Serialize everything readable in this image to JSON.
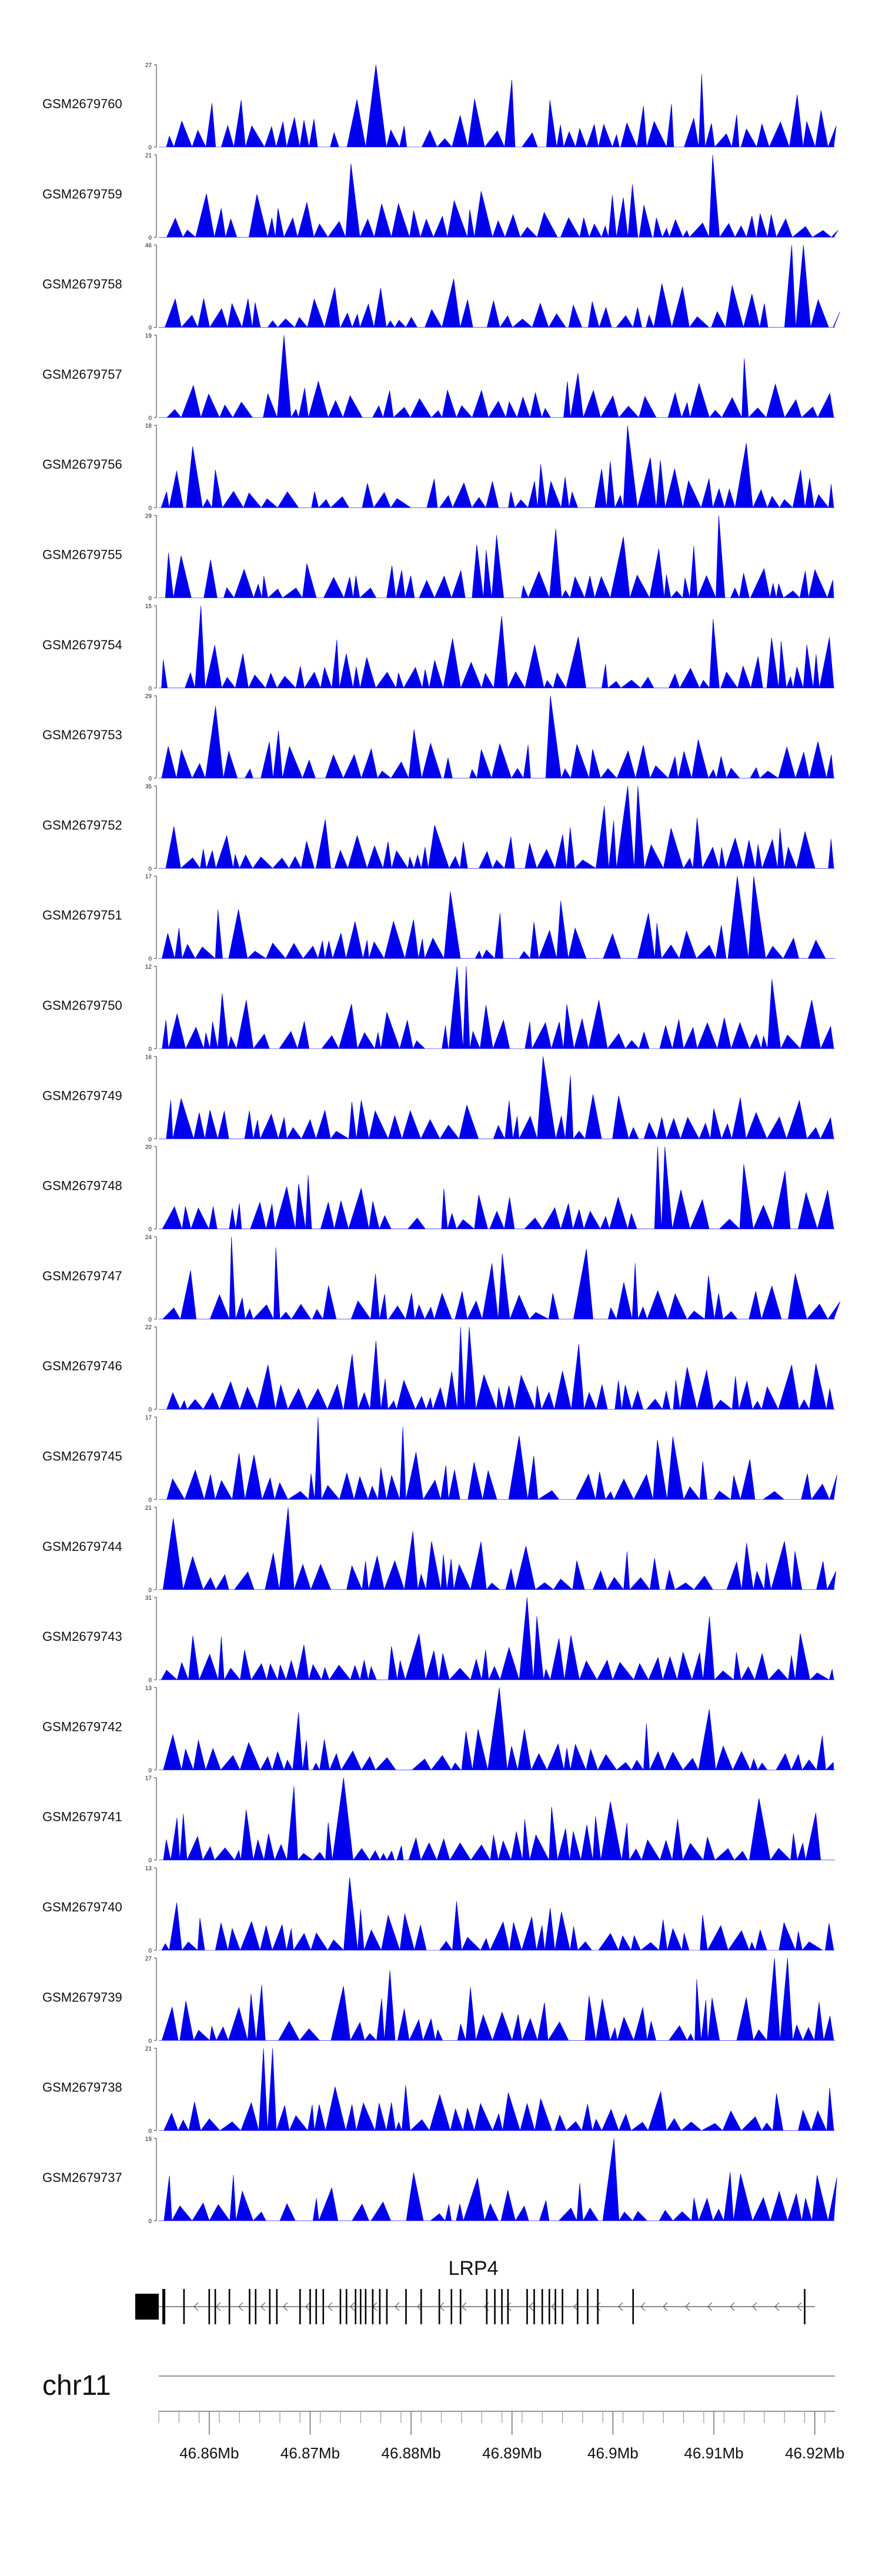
{
  "chart_data": {
    "type": "area",
    "title": "",
    "region": {
      "start": 46.855,
      "end": 46.922,
      "unit": "Mb"
    },
    "tracks": [
      {
        "name": "GSM2679760",
        "ymax": 27,
        "ymin": 0,
        "seed": 11
      },
      {
        "name": "GSM2679759",
        "ymax": 21,
        "ymin": 0,
        "seed": 23
      },
      {
        "name": "GSM2679758",
        "ymax": 46,
        "ymin": 0,
        "seed": 37
      },
      {
        "name": "GSM2679757",
        "ymax": 19,
        "ymin": 0,
        "seed": 41
      },
      {
        "name": "GSM2679756",
        "ymax": 18,
        "ymin": 0,
        "seed": 53
      },
      {
        "name": "GSM2679755",
        "ymax": 29,
        "ymin": 0,
        "seed": 67
      },
      {
        "name": "GSM2679754",
        "ymax": 15,
        "ymin": 0,
        "seed": 71
      },
      {
        "name": "GSM2679753",
        "ymax": 29,
        "ymin": 0,
        "seed": 83
      },
      {
        "name": "GSM2679752",
        "ymax": 35,
        "ymin": 0,
        "seed": 97
      },
      {
        "name": "GSM2679751",
        "ymax": 17,
        "ymin": 0,
        "seed": 101
      },
      {
        "name": "GSM2679750",
        "ymax": 12,
        "ymin": 0,
        "seed": 113
      },
      {
        "name": "GSM2679749",
        "ymax": 16,
        "ymin": 0,
        "seed": 127
      },
      {
        "name": "GSM2679748",
        "ymax": 20,
        "ymin": 0,
        "seed": 131
      },
      {
        "name": "GSM2679747",
        "ymax": 24,
        "ymin": 0,
        "seed": 149
      },
      {
        "name": "GSM2679746",
        "ymax": 22,
        "ymin": 0,
        "seed": 157
      },
      {
        "name": "GSM2679745",
        "ymax": 17,
        "ymin": 0,
        "seed": 163
      },
      {
        "name": "GSM2679744",
        "ymax": 21,
        "ymin": 0,
        "seed": 173
      },
      {
        "name": "GSM2679743",
        "ymax": 31,
        "ymin": 0,
        "seed": 181
      },
      {
        "name": "GSM2679742",
        "ymax": 13,
        "ymin": 0,
        "seed": 191
      },
      {
        "name": "GSM2679741",
        "ymax": 17,
        "ymin": 0,
        "seed": 197
      },
      {
        "name": "GSM2679740",
        "ymax": 13,
        "ymin": 0,
        "seed": 211
      },
      {
        "name": "GSM2679739",
        "ymax": 27,
        "ymin": 0,
        "seed": 223
      },
      {
        "name": "GSM2679738",
        "ymax": 21,
        "ymin": 0,
        "seed": 227
      },
      {
        "name": "GSM2679737",
        "ymax": 19,
        "ymin": 0,
        "seed": 239
      }
    ],
    "gene": {
      "name": "LRP4",
      "strand": "-",
      "start": 46.855,
      "end": 46.92,
      "exons": [
        46.8555,
        46.8575,
        46.86,
        46.8606,
        46.862,
        46.864,
        46.8646,
        46.866,
        46.8667,
        46.869,
        46.87,
        46.8706,
        46.8713,
        46.873,
        46.8736,
        46.8745,
        46.875,
        46.8755,
        46.8762,
        46.8769,
        46.8776,
        46.8795,
        46.881,
        46.8828,
        46.884,
        46.8849,
        46.8875,
        46.8883,
        46.889,
        46.8896,
        46.8915,
        46.8922,
        46.893,
        46.8937,
        46.8943,
        46.895,
        46.8965,
        46.8975,
        46.8985,
        46.902,
        46.919
      ]
    },
    "chromosome": "chr11",
    "axis": {
      "xlim": [
        46.855,
        46.922
      ],
      "ticks": [
        46.86,
        46.87,
        46.88,
        46.89,
        46.9,
        46.91,
        46.92
      ],
      "tick_labels": [
        "46.86Mb",
        "46.87Mb",
        "46.88Mb",
        "46.89Mb",
        "46.9Mb",
        "46.91Mb",
        "46.92Mb"
      ],
      "minor_step": 0.002
    },
    "fill_color": "#0000ee"
  }
}
